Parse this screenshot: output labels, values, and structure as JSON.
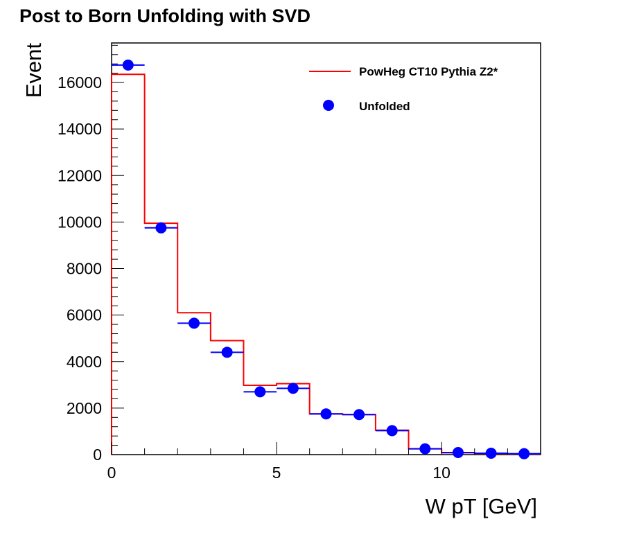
{
  "chart_data": {
    "type": "histogram",
    "title": "Post to Born Unfolding with SVD",
    "xlabel": "W pT [GeV]",
    "ylabel": "Event",
    "xlim": [
      0,
      13
    ],
    "ylim": [
      0,
      17700
    ],
    "x_ticks": [
      0,
      5,
      10
    ],
    "y_ticks": [
      0,
      2000,
      4000,
      6000,
      8000,
      10000,
      12000,
      14000,
      16000
    ],
    "bin_edges": [
      0,
      1,
      2,
      3,
      4,
      5,
      6,
      7,
      8,
      9,
      10,
      11,
      12,
      13
    ],
    "series": [
      {
        "name": "PowHeg CT10 Pythia Z2*",
        "kind": "step",
        "color": "#ff0000",
        "values": [
          16350,
          9950,
          6100,
          4900,
          2980,
          3050,
          1750,
          1720,
          1050,
          250,
          80,
          50,
          30
        ]
      },
      {
        "name": "Unfolded",
        "kind": "markers",
        "color": "#0000ff",
        "values": [
          16750,
          9750,
          5650,
          4400,
          2700,
          2850,
          1750,
          1720,
          1030,
          250,
          90,
          60,
          40
        ]
      }
    ],
    "legend_position": "top-right",
    "grid": false
  }
}
